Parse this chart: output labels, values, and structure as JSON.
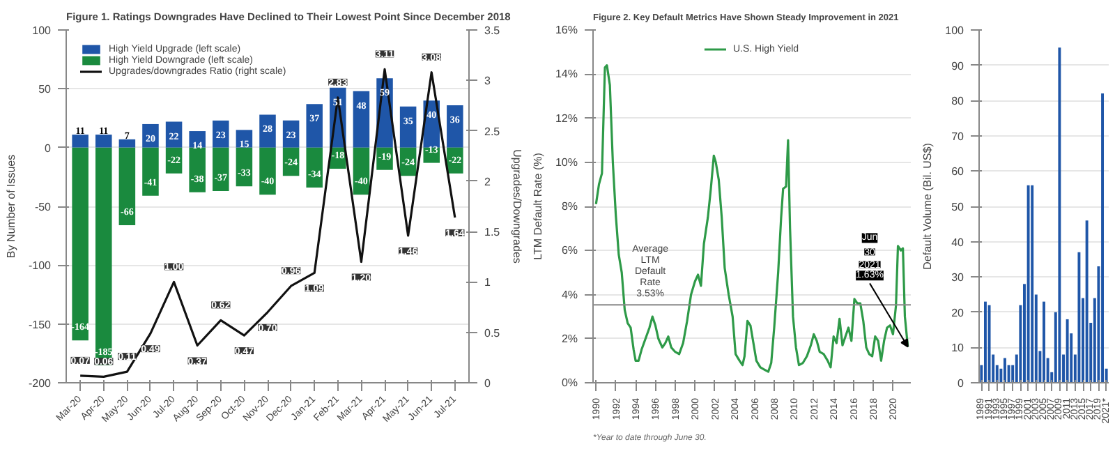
{
  "chart_data": [
    {
      "type": "bar",
      "title": "Figure 1. Ratings Downgrades Have Declined to Their Lowest Point Since December 2018",
      "ylabel": "By Number of Issues",
      "y2label": "Upgrades/Downgrades",
      "categories": [
        "Mar-20",
        "Apr-20",
        "May-20",
        "Jun-20",
        "Jul-20",
        "Aug-20",
        "Sep-20",
        "Oct-20",
        "Nov-20",
        "Dec-20",
        "Jan-21",
        "Feb-21",
        "Mar-21",
        "Apr-21",
        "May-21",
        "Jun-21",
        "Jul-21"
      ],
      "series": [
        {
          "name": "High Yield Upgrade (left scale)",
          "color": "#1f56a8",
          "values": [
            11,
            11,
            7,
            20,
            22,
            14,
            23,
            15,
            28,
            23,
            37,
            51,
            48,
            59,
            35,
            40,
            36
          ]
        },
        {
          "name": "High Yield Downgrade (left scale)",
          "color": "#1a8a3e",
          "values": [
            -164,
            -185,
            -66,
            -41,
            -22,
            -38,
            -37,
            -33,
            -40,
            -24,
            -34,
            -18,
            -40,
            -19,
            -24,
            -13,
            -22
          ]
        },
        {
          "name": "Upgrades/downgrades Ratio (right scale)",
          "type": "line",
          "axis": "y2",
          "color": "#111111",
          "values": [
            0.07,
            0.06,
            0.11,
            0.49,
            1.0,
            0.37,
            0.62,
            0.47,
            0.7,
            0.96,
            1.09,
            2.83,
            1.2,
            3.11,
            1.46,
            3.08,
            1.64
          ],
          "value_labels": [
            "0.07",
            "0.06",
            "0.11",
            "0.49",
            "1.00",
            "0.37",
            "0.62",
            "0.47",
            "0.70",
            "0.96",
            "1.09",
            "2.83",
            "1.20",
            "3.11",
            "1.46",
            "3.08",
            "1.64"
          ]
        }
      ],
      "ylim": [
        -200,
        100
      ],
      "yticks": [
        -200,
        -150,
        -100,
        -50,
        0,
        50,
        100
      ],
      "y2lim": [
        0,
        3.5
      ],
      "y2ticks": [
        0,
        0.5,
        1,
        1.5,
        2,
        2.5,
        3,
        3.5
      ],
      "data_labels": true,
      "stacked": true,
      "grid": "y",
      "legend": "top left"
    },
    {
      "type": "line",
      "title": "Figure 2. Key Default Metrics Have Shown Steady Improvement in 2021",
      "ylabel": "LTM Default Rate (%)",
      "series": [
        {
          "name": "U.S. High Yield",
          "color": "#2e9a48",
          "x": [
            1990.0,
            1990.3,
            1990.6,
            1990.9,
            1991.1,
            1991.4,
            1991.7,
            1992.0,
            1992.3,
            1992.6,
            1992.9,
            1993.2,
            1993.5,
            1993.8,
            1994.0,
            1994.3,
            1994.6,
            1995.0,
            1995.4,
            1995.7,
            1996.0,
            1996.3,
            1996.7,
            1997.0,
            1997.3,
            1997.6,
            1998.0,
            1998.4,
            1998.8,
            1999.2,
            1999.6,
            2000.0,
            2000.3,
            2000.6,
            2000.9,
            2001.3,
            2001.6,
            2001.9,
            2002.1,
            2002.4,
            2002.7,
            2003.0,
            2003.4,
            2003.8,
            2004.1,
            2004.5,
            2004.8,
            2005.0,
            2005.3,
            2005.6,
            2005.9,
            2006.2,
            2006.6,
            2007.0,
            2007.4,
            2007.7,
            2008.0,
            2008.4,
            2008.7,
            2008.9,
            2009.2,
            2009.4,
            2009.6,
            2009.9,
            2010.2,
            2010.5,
            2010.9,
            2011.3,
            2011.7,
            2012.0,
            2012.3,
            2012.6,
            2013.0,
            2013.4,
            2013.7,
            2014.0,
            2014.3,
            2014.6,
            2014.9,
            2015.2,
            2015.5,
            2015.8,
            2016.1,
            2016.4,
            2016.7,
            2017.0,
            2017.3,
            2017.6,
            2017.9,
            2018.2,
            2018.5,
            2018.8,
            2019.1,
            2019.4,
            2019.7,
            2020.0,
            2020.3,
            2020.5,
            2020.8,
            2021.0,
            2021.2,
            2021.5
          ],
          "values": [
            8.1,
            9.0,
            9.5,
            14.3,
            14.4,
            13.5,
            10.0,
            7.6,
            5.8,
            5.0,
            3.3,
            2.7,
            2.5,
            1.5,
            1.0,
            1.0,
            1.5,
            2.0,
            2.5,
            3.0,
            2.6,
            2.0,
            1.6,
            1.8,
            2.1,
            1.6,
            1.4,
            1.3,
            1.8,
            2.8,
            4.0,
            4.6,
            4.9,
            4.4,
            6.3,
            7.5,
            8.8,
            10.3,
            10.0,
            9.2,
            7.5,
            5.2,
            4.0,
            3.0,
            1.3,
            1.0,
            0.8,
            1.2,
            2.8,
            2.6,
            1.8,
            1.0,
            0.7,
            0.6,
            0.5,
            0.9,
            2.5,
            5.0,
            7.5,
            8.8,
            8.9,
            11.0,
            7.0,
            3.0,
            1.6,
            0.8,
            0.9,
            1.2,
            1.7,
            2.2,
            1.9,
            1.4,
            1.3,
            1.0,
            0.7,
            2.1,
            1.8,
            2.9,
            1.7,
            2.1,
            2.5,
            1.9,
            3.8,
            3.6,
            3.6,
            2.8,
            1.6,
            1.3,
            1.2,
            2.1,
            1.9,
            1.0,
            1.9,
            2.5,
            2.6,
            2.2,
            3.5,
            6.2,
            6.0,
            6.1,
            3.0,
            1.63
          ]
        }
      ],
      "xlim": [
        1989.7,
        2021.8
      ],
      "xticks": [
        1990,
        1992,
        1994,
        1996,
        1998,
        2000,
        2002,
        2004,
        2006,
        2008,
        2010,
        2012,
        2014,
        2016,
        2018,
        2020
      ],
      "ylim": [
        0,
        16
      ],
      "yticks": [
        {
          "value": 0,
          "label": "0%"
        },
        {
          "value": 2,
          "label": "2%"
        },
        {
          "value": 4,
          "label": "4%"
        },
        {
          "value": 6,
          "label": "6%"
        },
        {
          "value": 8,
          "label": "8%"
        },
        {
          "value": 10,
          "label": "10%"
        },
        {
          "value": 12,
          "label": "12%"
        },
        {
          "value": 14,
          "label": "14%"
        },
        {
          "value": 16,
          "label": "16%"
        }
      ],
      "ref_lines": [
        {
          "axis": "y",
          "value": 3.53,
          "label": "Average LTM Default Rate 3.53%",
          "color": "#888888"
        }
      ],
      "annotations": [
        {
          "text": "Jun 30 2021 1.63%",
          "x": 2021.5,
          "y": 1.63
        },
        "*Year to date through June 30."
      ],
      "grid": "y",
      "legend": "top"
    },
    {
      "type": "bar",
      "ylabel": "Default Volume (Bil. US$)",
      "categories": [
        "1989",
        null,
        "1991",
        null,
        "1993",
        null,
        "1995",
        null,
        "1997",
        null,
        "1999",
        null,
        "2001",
        null,
        "2003",
        null,
        "2005",
        null,
        "2007",
        null,
        "2009",
        null,
        "2011",
        null,
        "2013",
        null,
        "2015",
        null,
        "2017",
        null,
        "2019",
        null,
        "2021*"
      ],
      "values": [
        5,
        23,
        22,
        8,
        5,
        4,
        7,
        5,
        5,
        8,
        22,
        28,
        56,
        56,
        25,
        9,
        23,
        7,
        3,
        20,
        95,
        8,
        18,
        14,
        8,
        37,
        24,
        46,
        17,
        24,
        33,
        82,
        4
      ],
      "color": "#1f56a8",
      "ylim": [
        0,
        100
      ],
      "yticks": [
        0,
        10,
        20,
        30,
        40,
        50,
        60,
        70,
        80,
        90,
        100
      ],
      "grid": "y"
    }
  ]
}
